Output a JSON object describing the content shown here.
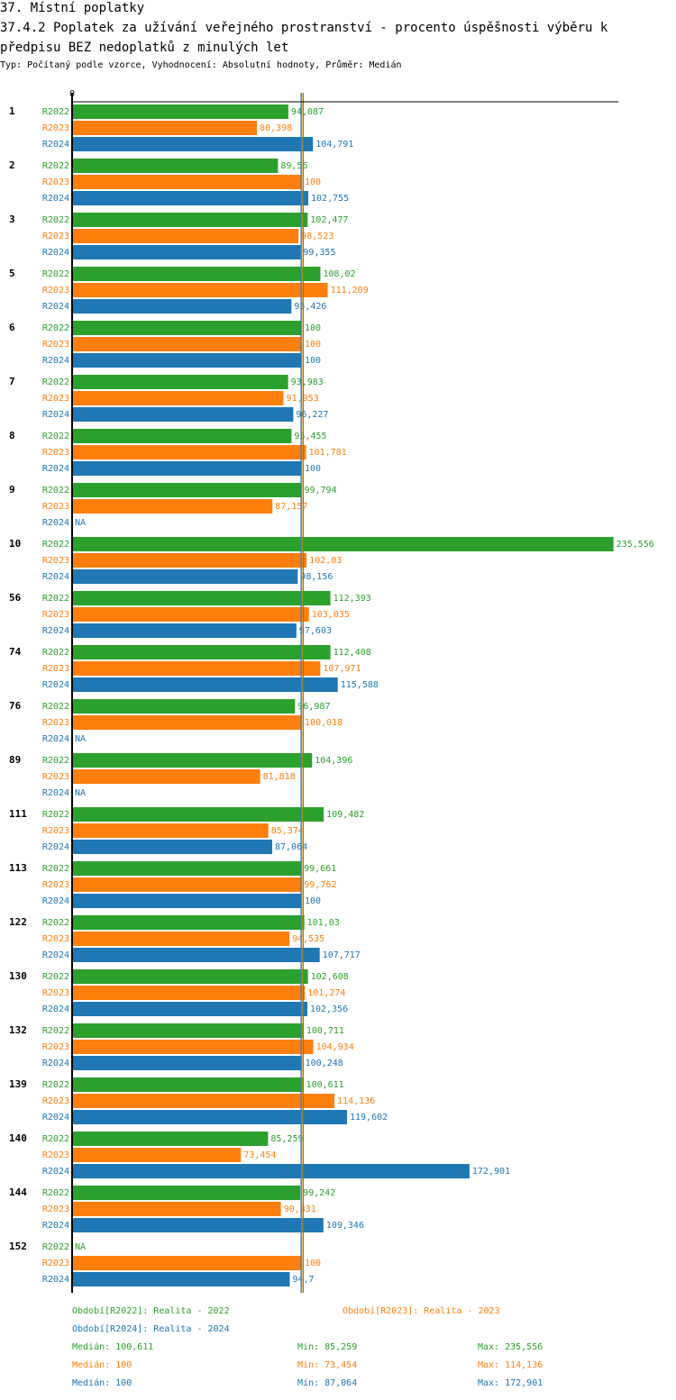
{
  "header": {
    "section": "37. Místní poplatky",
    "title": "37.4.2 Poplatek za užívání veřejného prostranství - procento úspěšnosti výběru k předpisu BEZ nedoplatků z minulých let",
    "subtitle": "Typ: Počítaný podle vzorce, Vyhodnocení: Absolutní hodnoty, Průměr: Medián"
  },
  "chart_data": {
    "type": "bar",
    "orientation": "horizontal",
    "title": "37.4.2 Poplatek za užívání veřejného prostranství - procento úspěšnosti výběru k předpisu BEZ nedoplatků z minulých let",
    "xlabel": "",
    "ylabel": "",
    "axis_zero_label": "0",
    "xlim": [
      0,
      235.556
    ],
    "grid": false,
    "legend_placement": "bottom",
    "categories": [
      "1",
      "2",
      "3",
      "5",
      "6",
      "7",
      "8",
      "9",
      "10",
      "56",
      "74",
      "76",
      "89",
      "111",
      "113",
      "122",
      "130",
      "132",
      "139",
      "140",
      "144",
      "152"
    ],
    "series": [
      {
        "name": "R2022",
        "color": "#2ca02c",
        "values": [
          94.087,
          89.56,
          102.477,
          108.02,
          100,
          93.983,
          95.455,
          99.794,
          235.556,
          112.393,
          112.408,
          96.987,
          104.396,
          109.482,
          99.661,
          101.03,
          102.608,
          100.711,
          100.611,
          85.259,
          99.242,
          null
        ],
        "labels": [
          "94,087",
          "89,56",
          "102,477",
          "108,02",
          "100",
          "93,983",
          "95,455",
          "99,794",
          "235,556",
          "112,393",
          "112,408",
          "96,987",
          "104,396",
          "109,482",
          "99,661",
          "101,03",
          "102,608",
          "100,711",
          "100,611",
          "85,259",
          "99,242",
          "NA"
        ]
      },
      {
        "name": "R2023",
        "color": "#ff7f0e",
        "values": [
          80.398,
          100,
          98.523,
          111.209,
          100,
          91.953,
          101.781,
          87.157,
          102.03,
          103.035,
          107.971,
          100.018,
          81.818,
          85.374,
          99.762,
          94.535,
          101.274,
          104.934,
          114.136,
          73.454,
          90.831,
          100
        ],
        "labels": [
          "80,398",
          "100",
          "98,523",
          "111,209",
          "100",
          "91,953",
          "101,781",
          "87,157",
          "102,03",
          "103,035",
          "107,971",
          "100,018",
          "81,818",
          "85,374",
          "99,762",
          "94,535",
          "101,274",
          "104,934",
          "114,136",
          "73,454",
          "90,831",
          "100"
        ]
      },
      {
        "name": "R2024",
        "color": "#1f77b4",
        "values": [
          104.791,
          102.755,
          99.355,
          95.426,
          100,
          96.227,
          100,
          null,
          98.156,
          97.603,
          115.588,
          null,
          null,
          87.064,
          100,
          107.717,
          102.356,
          100.248,
          119.602,
          172.901,
          109.346,
          94.7
        ],
        "labels": [
          "104,791",
          "102,755",
          "99,355",
          "95,426",
          "100",
          "96,227",
          "100",
          "NA",
          "98,156",
          "97,603",
          "115,588",
          "NA",
          "NA",
          "87,064",
          "100",
          "107,717",
          "102,356",
          "100,248",
          "119,602",
          "172,901",
          "109,346",
          "94,7"
        ]
      }
    ],
    "medians": [
      {
        "series": "R2022",
        "value": 100.611
      },
      {
        "series": "R2023",
        "value": 100
      },
      {
        "series": "R2024",
        "value": 100
      }
    ]
  },
  "legend": {
    "periods": [
      {
        "text": "Období[R2022]: Realita - 2022",
        "color": "#2ca02c"
      },
      {
        "text": "Období[R2023]: Realita - 2023",
        "color": "#ff7f0e"
      },
      {
        "text": "Období[R2024]: Realita - 2024",
        "color": "#1f77b4"
      }
    ],
    "stats": [
      {
        "median": "Medián: 100,611",
        "min": "Min: 85,259",
        "max": "Max: 235,556",
        "color": "#2ca02c"
      },
      {
        "median": "Medián: 100",
        "min": "Min: 73,454",
        "max": "Max: 114,136",
        "color": "#ff7f0e"
      },
      {
        "median": "Medián: 100",
        "min": "Min: 87,064",
        "max": "Max: 172,901",
        "color": "#1f77b4"
      }
    ]
  }
}
